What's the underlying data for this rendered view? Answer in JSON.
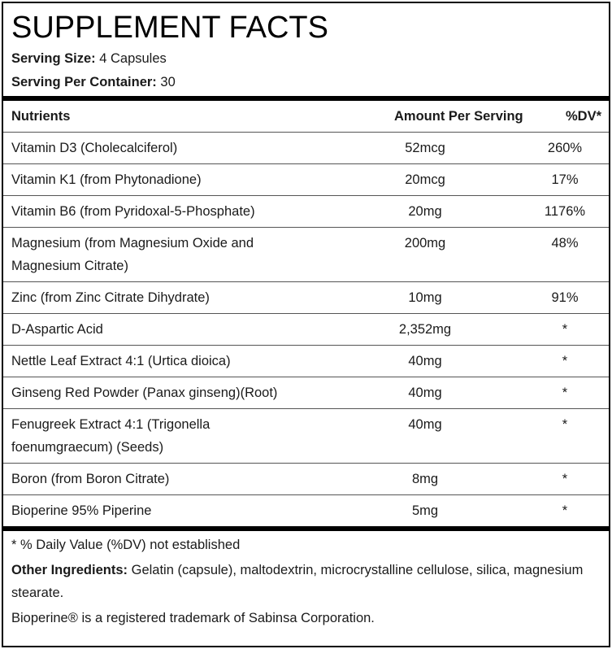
{
  "header": {
    "title": "SUPPLEMENT FACTS",
    "serving_size": {
      "label": "Serving Size:",
      "value": "4 Capsules"
    },
    "servings_per_container": {
      "label": "Serving Per Container:",
      "value": "30"
    }
  },
  "table": {
    "columns": [
      "Nutrients",
      "Amount Per Serving",
      "%DV*"
    ],
    "rows": [
      [
        "Vitamin D3 (Cholecalciferol)",
        "52mcg",
        "260%"
      ],
      [
        "Vitamin K1 (from Phytonadione)",
        "20mcg",
        "17%"
      ],
      [
        "Vitamin B6 (from Pyridoxal-5-Phosphate)",
        "20mg",
        "1176%"
      ],
      [
        "Magnesium (from Magnesium Oxide and Magnesium Citrate)",
        "200mg",
        "48%"
      ],
      [
        "Zinc (from Zinc Citrate Dihydrate)",
        "10mg",
        "91%"
      ],
      [
        "D-Aspartic Acid",
        "2,352mg",
        "*"
      ],
      [
        "Nettle Leaf Extract 4:1 (Urtica dioica)",
        "40mg",
        "*"
      ],
      [
        "Ginseng Red Powder (Panax ginseng)(Root)",
        "40mg",
        "*"
      ],
      [
        "Fenugreek Extract 4:1 (Trigonella foenumgraecum) (Seeds)",
        "40mg",
        "*"
      ],
      [
        "Boron (from Boron Citrate)",
        "8mg",
        "*"
      ],
      [
        "Bioperine 95% Piperine",
        "5mg",
        "*"
      ]
    ]
  },
  "footer": {
    "note": "* % Daily Value (%DV) not established",
    "other_ingredients": {
      "label": "Other Ingredients:",
      "value": "Gelatin (capsule), maltodextrin, microcrystalline cellulose, silica, magnesium stearate."
    },
    "trademark": "Bioperine® is a registered trademark of Sabinsa Corporation."
  }
}
